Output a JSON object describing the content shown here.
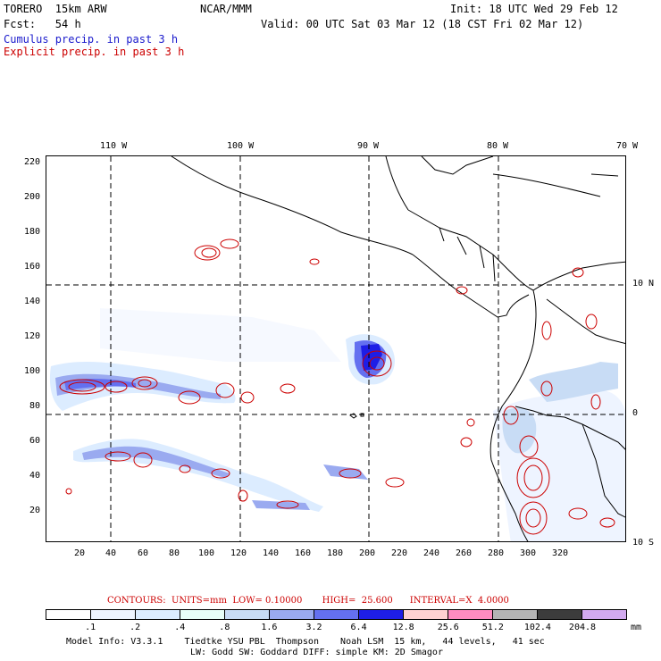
{
  "header": {
    "model": "TORERO  15km ARW",
    "org": "NCAR/MMM",
    "init": "Init: 18 UTC Wed 29 Feb 12",
    "fcst": "Fcst:   54 h",
    "valid": "Valid: 00 UTC Sat 03 Mar 12 (18 CST Fri 02 Mar 12)",
    "cumulus_label": "Cumulus precip. in past 3 h",
    "explicit_label": "Explicit precip. in past 3 h"
  },
  "colors": {
    "cumulus": "#1a1acc",
    "explicit": "#cc0000",
    "coast": "#000000"
  },
  "top_ticks": [
    "110 W",
    "100 W",
    "90 W",
    "80 W",
    "70 W"
  ],
  "right_ticks": [
    "10 N",
    "0",
    "10 S"
  ],
  "left_ticks": [
    "220",
    "200",
    "180",
    "160",
    "140",
    "120",
    "100",
    "80",
    "60",
    "40",
    "20"
  ],
  "bottom_ticks": [
    "20",
    "40",
    "60",
    "80",
    "100",
    "120",
    "140",
    "160",
    "180",
    "200",
    "220",
    "240",
    "260",
    "280",
    "300",
    "320"
  ],
  "contour_info": "CONTOURS:  UNITS=mm  LOW= 0.10000       HIGH=  25.600      INTERVAL=X  4.0000",
  "colorbar": {
    "labels": [
      ".1",
      ".2",
      ".4",
      ".8",
      "1.6",
      "3.2",
      "6.4",
      "12.8",
      "25.6",
      "51.2",
      "102.4",
      "204.8"
    ],
    "unit": "mm",
    "colors": [
      "#ffffff",
      "#eef4ff",
      "#dcecff",
      "#e8fff8",
      "#c8dcf5",
      "#9aaaf0",
      "#6470f0",
      "#1e1ee6",
      "#ffd2d2",
      "#ff8cc0",
      "#b4b4b4",
      "#3c3c3c",
      "#d2aaf0"
    ]
  },
  "footer": {
    "line1": "Model Info: V3.3.1    Tiedtke YSU PBL  Thompson    Noah LSM  15 km,   44 levels,   41 sec",
    "line2": "LW: Godd SW: Goddard DIFF: simple KM: 2D Smagor"
  }
}
